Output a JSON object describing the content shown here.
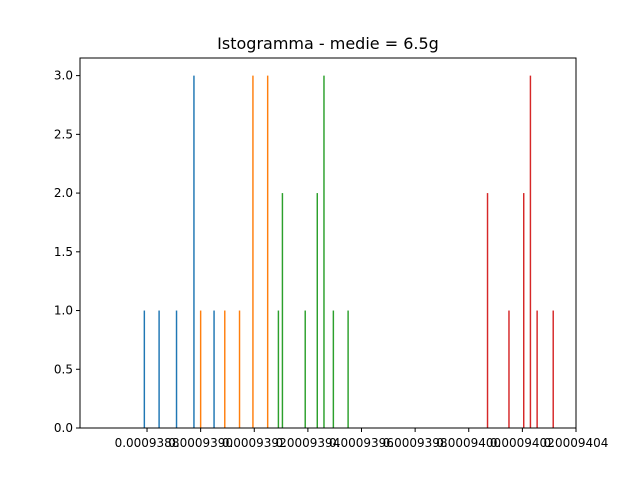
{
  "chart_data": {
    "type": "bar",
    "title": "Istogramma - medie = 6.5g",
    "xlabel": "",
    "ylabel": "",
    "xlim": [
      0.00093855,
      0.0009404
    ],
    "ylim": [
      0,
      3.15
    ],
    "grid": false,
    "legend": "none",
    "bin_width": 5.4e-09,
    "x_ticks": [
      {
        "value": 0.0009388,
        "label": "0.0009388"
      },
      {
        "value": 0.000939,
        "label": "0.0009390"
      },
      {
        "value": 0.0009392,
        "label": "0.0009392"
      },
      {
        "value": 0.0009394,
        "label": "0.0009394"
      },
      {
        "value": 0.0009396,
        "label": "0.0009396"
      },
      {
        "value": 0.0009398,
        "label": "0.0009398"
      },
      {
        "value": 0.00094,
        "label": "0.0009400"
      },
      {
        "value": 0.0009402,
        "label": "0.0009402"
      },
      {
        "value": 0.0009404,
        "label": "0.0009404"
      }
    ],
    "y_ticks": [
      {
        "value": 0.0,
        "label": "0.0"
      },
      {
        "value": 0.5,
        "label": "0.5"
      },
      {
        "value": 1.0,
        "label": "1.0"
      },
      {
        "value": 1.5,
        "label": "1.5"
      },
      {
        "value": 2.0,
        "label": "2.0"
      },
      {
        "value": 2.5,
        "label": "2.5"
      },
      {
        "value": 3.0,
        "label": "3.0"
      }
    ],
    "series": [
      {
        "color": "#1f77b4",
        "bins": [
          {
            "x": 0.00093879,
            "count": 1
          },
          {
            "x": 0.000938845,
            "count": 1
          },
          {
            "x": 0.00093891,
            "count": 1
          },
          {
            "x": 0.000938975,
            "count": 3
          },
          {
            "x": 0.00093905,
            "count": 1
          }
        ]
      },
      {
        "color": "#ff7f0e",
        "bins": [
          {
            "x": 0.000939,
            "count": 1
          },
          {
            "x": 0.00093909,
            "count": 1
          },
          {
            "x": 0.000939145,
            "count": 1
          },
          {
            "x": 0.000939195,
            "count": 3
          },
          {
            "x": 0.00093925,
            "count": 3
          }
        ]
      },
      {
        "color": "#2ca02c",
        "bins": [
          {
            "x": 0.00093929,
            "count": 1
          },
          {
            "x": 0.000939305,
            "count": 2
          },
          {
            "x": 0.00093939,
            "count": 1
          },
          {
            "x": 0.000939435,
            "count": 2
          },
          {
            "x": 0.00093946,
            "count": 3
          },
          {
            "x": 0.000939495,
            "count": 1
          },
          {
            "x": 0.00093955,
            "count": 1
          }
        ]
      },
      {
        "color": "#d62728",
        "bins": [
          {
            "x": 0.00094007,
            "count": 2
          },
          {
            "x": 0.00094015,
            "count": 1
          },
          {
            "x": 0.000940205,
            "count": 2
          },
          {
            "x": 0.00094023,
            "count": 3
          },
          {
            "x": 0.000940255,
            "count": 1
          },
          {
            "x": 0.000940315,
            "count": 1
          }
        ]
      }
    ]
  }
}
